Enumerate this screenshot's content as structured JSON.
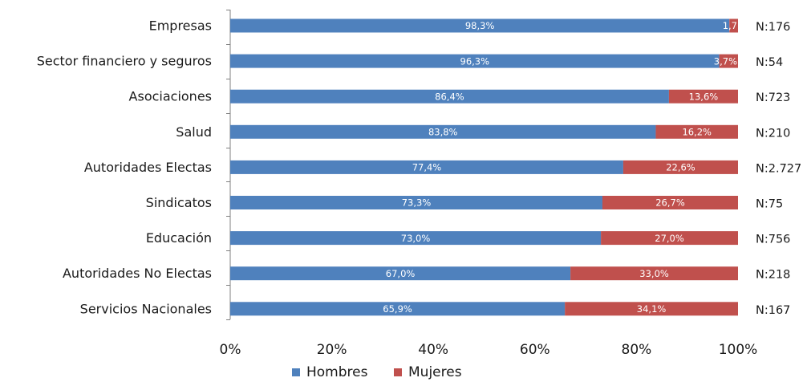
{
  "chart_data": {
    "type": "bar",
    "orientation": "horizontal",
    "stacked": true,
    "title": "",
    "xlabel": "",
    "ylabel": "",
    "xlim": [
      0,
      100
    ],
    "x_ticks": [
      "0%",
      "20%",
      "40%",
      "60%",
      "80%",
      "100%"
    ],
    "categories": [
      "Empresas",
      "Sector financiero y seguros",
      "Asociaciones",
      "Salud",
      "Autoridades Electas",
      "Sindicatos",
      "Educación",
      "Autoridades No Electas",
      "Servicios Nacionales"
    ],
    "series": [
      {
        "name": "Hombres",
        "color": "#4f81bd",
        "values": [
          98.3,
          96.3,
          86.4,
          83.8,
          77.4,
          73.3,
          73.0,
          67.0,
          65.9
        ],
        "labels": [
          "98,3%",
          "96,3%",
          "86,4%",
          "83,8%",
          "77,4%",
          "73,3%",
          "73,0%",
          "67,0%",
          "65,9%"
        ]
      },
      {
        "name": "Mujeres",
        "color": "#c0504d",
        "values": [
          1.7,
          3.7,
          13.6,
          16.2,
          22.6,
          26.7,
          27.0,
          33.0,
          34.1
        ],
        "labels": [
          "1,7",
          "3,7%",
          "13,6%",
          "16,2%",
          "22,6%",
          "26,7%",
          "27,0%",
          "33,0%",
          "34,1%"
        ]
      }
    ],
    "n_labels": [
      "N:176",
      "N:54",
      "N:723",
      "N:210",
      "N:2.727",
      "N:75",
      "N:756",
      "N:218",
      "N:167"
    ],
    "grid": false,
    "legend": "bottom-center"
  }
}
